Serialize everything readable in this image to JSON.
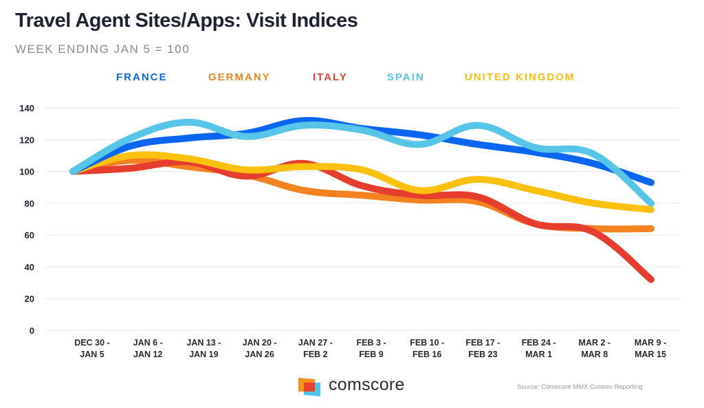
{
  "header": {
    "title": "Travel Agent Sites/Apps: Visit Indices",
    "subtitle": "WEEK ENDING JAN 5 = 100"
  },
  "footer": {
    "brand": "comscore",
    "source": "Source: Comscore MMX Custom Reporting",
    "logo_colors": {
      "orange": "#f7941d",
      "red": "#e8412c",
      "blue": "#55c3e8"
    }
  },
  "chart_data": {
    "type": "line",
    "title": "Travel Agent Sites/Apps: Visit Indices",
    "subtitle": "WEEK ENDING JAN 5 = 100",
    "xlabel": "",
    "ylabel": "",
    "ylim": [
      0,
      140
    ],
    "yticks": [
      0,
      20,
      40,
      60,
      80,
      100,
      120,
      140
    ],
    "grid": true,
    "legend_position": "top",
    "categories": [
      [
        "DEC 30 -",
        "JAN 5"
      ],
      [
        "JAN 6 -",
        "JAN 12"
      ],
      [
        "JAN 13 -",
        "JAN 19"
      ],
      [
        "JAN 20 -",
        "JAN 26"
      ],
      [
        "JAN 27 -",
        "FEB 2"
      ],
      [
        "FEB 3 -",
        "FEB 9"
      ],
      [
        "FEB 10 -",
        "FEB 16"
      ],
      [
        "FEB 17 -",
        "FEB 23"
      ],
      [
        "FEB 24 -",
        "MAR 1"
      ],
      [
        "MAR 2 -",
        "MAR 8"
      ],
      [
        "MAR 9 -",
        "MAR 15"
      ]
    ],
    "series": [
      {
        "name": "GERMANY",
        "color": "#f58220",
        "values": [
          100,
          107,
          103,
          98,
          88,
          85,
          82,
          81,
          67,
          64,
          64
        ]
      },
      {
        "name": "ITALY",
        "color": "#e53e2f",
        "values": [
          100,
          102,
          106,
          97,
          105,
          91,
          85,
          84,
          67,
          62,
          32
        ]
      },
      {
        "name": "UNITED KINGDOM",
        "color": "#fcc00f",
        "values": [
          100,
          110,
          108,
          101,
          103,
          101,
          88,
          95,
          88,
          80,
          76
        ]
      },
      {
        "name": "FRANCE",
        "color": "#0a66f0",
        "values": [
          100,
          116,
          121,
          124,
          132,
          127,
          123,
          117,
          112,
          105,
          93
        ]
      },
      {
        "name": "SPAIN",
        "color": "#56c5e8",
        "values": [
          100,
          121,
          131,
          122,
          129,
          126,
          117,
          129,
          115,
          111,
          80
        ]
      }
    ],
    "legend_order": [
      "FRANCE",
      "GERMANY",
      "ITALY",
      "SPAIN",
      "UNITED KINGDOM"
    ]
  }
}
